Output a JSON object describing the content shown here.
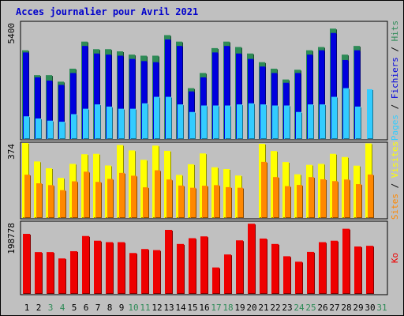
{
  "title": "Acces journalier pour Avril 2021",
  "colors": {
    "pages": "#33ccff",
    "hits": "#2e8b57",
    "files": "#0000dd",
    "visits": "#ffff00",
    "sites": "#ff8800",
    "ko": "#ee0000",
    "weekend_label": "#2e8b57"
  },
  "chart_data": [
    {
      "type": "bar",
      "categories": [
        "1",
        "2",
        "3",
        "4",
        "5",
        "6",
        "7",
        "8",
        "9",
        "10",
        "11",
        "12",
        "13",
        "14",
        "15",
        "16",
        "17",
        "18",
        "19",
        "20",
        "21",
        "22",
        "23",
        "24",
        "25",
        "26",
        "27",
        "28",
        "29",
        "30",
        "31"
      ],
      "weekend_days": [
        "3",
        "4",
        "10",
        "11",
        "17",
        "18",
        "24",
        "25",
        "31"
      ],
      "ymax_label": "5400",
      "ylim": [
        0,
        5400
      ],
      "right_label": {
        "pages": "Pages",
        "files": "Fichiers",
        "hits": "Hits",
        "sep": " / "
      },
      "series": [
        {
          "name": "Hits",
          "values": [
            4100,
            2950,
            2950,
            2650,
            3250,
            4500,
            4150,
            4150,
            4050,
            3900,
            3850,
            3850,
            4800,
            4500,
            2350,
            3050,
            4200,
            4500,
            4250,
            3950,
            3550,
            3250,
            2750,
            3200,
            4100,
            4250,
            5100,
            3900,
            4300,
            0,
            0
          ]
        },
        {
          "name": "Fichiers",
          "values": [
            4000,
            2850,
            2700,
            2500,
            3050,
            4300,
            3950,
            3900,
            3850,
            3700,
            3600,
            3550,
            4600,
            4300,
            2200,
            2850,
            4000,
            4300,
            3950,
            3700,
            3350,
            3050,
            2600,
            3050,
            3900,
            4100,
            4900,
            3650,
            4100,
            0,
            0
          ]
        },
        {
          "name": "Pages",
          "values": [
            1050,
            950,
            850,
            800,
            1150,
            1400,
            1600,
            1500,
            1400,
            1400,
            1650,
            1950,
            1950,
            1600,
            1250,
            1550,
            1550,
            1550,
            1600,
            1650,
            1600,
            1550,
            1550,
            1250,
            1600,
            1600,
            1950,
            2350,
            1500,
            2300,
            0
          ]
        }
      ]
    },
    {
      "type": "bar",
      "categories": [
        "1",
        "2",
        "3",
        "4",
        "5",
        "6",
        "7",
        "8",
        "9",
        "10",
        "11",
        "12",
        "13",
        "14",
        "15",
        "16",
        "17",
        "18",
        "19",
        "20",
        "21",
        "22",
        "23",
        "24",
        "25",
        "26",
        "27",
        "28",
        "29",
        "30",
        "31"
      ],
      "ymax_label": "374",
      "ylim": [
        0,
        374
      ],
      "right_label": {
        "sites": "Sites",
        "visits": "Visites",
        "sep": " / "
      },
      "series": [
        {
          "name": "Visites",
          "values": [
            374,
            282,
            248,
            200,
            270,
            318,
            320,
            262,
            364,
            337,
            290,
            361,
            335,
            215,
            268,
            322,
            253,
            244,
            212,
            0,
            370,
            334,
            279,
            218,
            265,
            270,
            320,
            304,
            261,
            372,
            0
          ]
        },
        {
          "name": "Sites",
          "values": [
            216,
            173,
            164,
            139,
            183,
            231,
            180,
            195,
            225,
            211,
            153,
            238,
            192,
            162,
            151,
            161,
            164,
            154,
            151,
            0,
            280,
            204,
            159,
            165,
            204,
            193,
            184,
            192,
            169,
            217,
            0
          ]
        }
      ]
    },
    {
      "type": "bar",
      "categories": [
        "1",
        "2",
        "3",
        "4",
        "5",
        "6",
        "7",
        "8",
        "9",
        "10",
        "11",
        "12",
        "13",
        "14",
        "15",
        "16",
        "17",
        "18",
        "19",
        "20",
        "21",
        "22",
        "23",
        "24",
        "25",
        "26",
        "27",
        "28",
        "29",
        "30",
        "31"
      ],
      "ymax_label": "198778",
      "ylim": [
        0,
        198778
      ],
      "right_label": {
        "ko": "Ko"
      },
      "series": [
        {
          "name": "Ko",
          "values": [
            166000,
            115500,
            115500,
            98000,
            118000,
            160000,
            147000,
            143000,
            143000,
            113000,
            124000,
            121000,
            177000,
            138000,
            154000,
            159000,
            73000,
            109000,
            148000,
            194000,
            153000,
            138000,
            104000,
            89000,
            116000,
            143000,
            147000,
            180000,
            131000,
            133000,
            0
          ]
        }
      ]
    }
  ]
}
